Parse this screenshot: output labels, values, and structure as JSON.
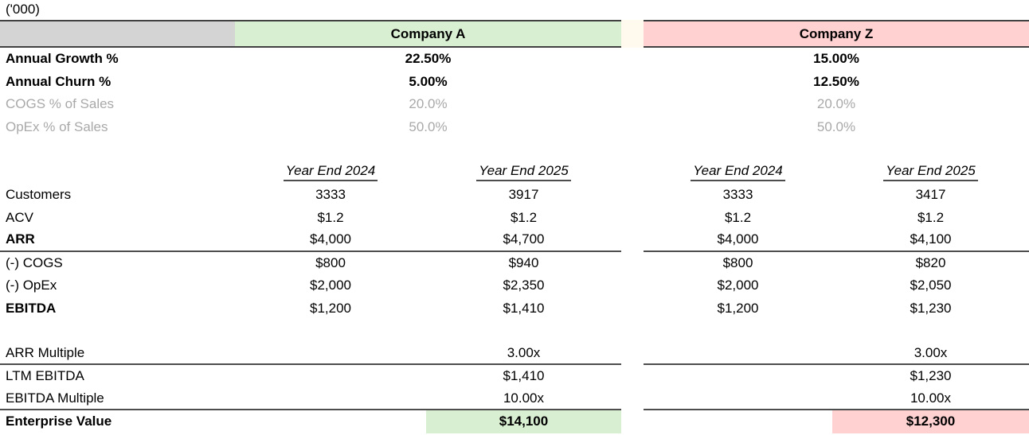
{
  "sheet": {
    "units_label": "('000)"
  },
  "companies": {
    "a": {
      "name": "Company A",
      "fill": "#d9efd2"
    },
    "z": {
      "name": "Company Z",
      "fill": "#ffd1d1"
    }
  },
  "colors": {
    "header_spacer_fill": "#d4d4d4",
    "header_gap_fill": "#fff9ee",
    "muted_text": "#a9a9a9",
    "rule_line": "#4d4d4d"
  },
  "assumptions": {
    "rows": [
      {
        "label": "Annual Growth %",
        "company_a": "22.50%",
        "company_z": "15.00%"
      },
      {
        "label": "Annual Churn %",
        "company_a": "5.00%",
        "company_z": "12.50%"
      },
      {
        "label": "COGS % of Sales",
        "company_a": "20.0%",
        "company_z": "20.0%"
      },
      {
        "label": "OpEx % of Sales",
        "company_a": "50.0%",
        "company_z": "50.0%"
      }
    ]
  },
  "model": {
    "year_headers": {
      "a_2024": "Year End 2024",
      "a_2025": "Year End 2025",
      "z_2024": "Year End 2024",
      "z_2025": "Year End 2025"
    },
    "rows": [
      {
        "label": "Customers",
        "a_2024": "3333",
        "a_2025": "3917",
        "z_2024": "3333",
        "z_2025": "3417"
      },
      {
        "label": "ACV",
        "a_2024": "$1.2",
        "a_2025": "$1.2",
        "z_2024": "$1.2",
        "z_2025": "$1.2"
      },
      {
        "label": "ARR",
        "a_2024": "$4,000",
        "a_2025": "$4,700",
        "z_2024": "$4,000",
        "z_2025": "$4,100"
      },
      {
        "label": "(-) COGS",
        "a_2024": "$800",
        "a_2025": "$940",
        "z_2024": "$800",
        "z_2025": "$820"
      },
      {
        "label": "(-) OpEx",
        "a_2024": "$2,000",
        "a_2025": "$2,350",
        "z_2024": "$2,000",
        "z_2025": "$2,050"
      },
      {
        "label": "EBITDA",
        "a_2024": "$1,200",
        "a_2025": "$1,410",
        "z_2024": "$1,200",
        "z_2025": "$1,230"
      }
    ]
  },
  "valuation": {
    "rows": [
      {
        "label": "ARR Multiple",
        "company_a": "3.00x",
        "company_z": "3.00x"
      },
      {
        "label": "LTM EBITDA",
        "company_a": "$1,410",
        "company_z": "$1,230"
      },
      {
        "label": "EBITDA Multiple",
        "company_a": "10.00x",
        "company_z": "10.00x"
      }
    ],
    "enterprise_value": {
      "label": "Enterprise Value",
      "company_a": "$14,100",
      "company_z": "$12,300"
    }
  }
}
